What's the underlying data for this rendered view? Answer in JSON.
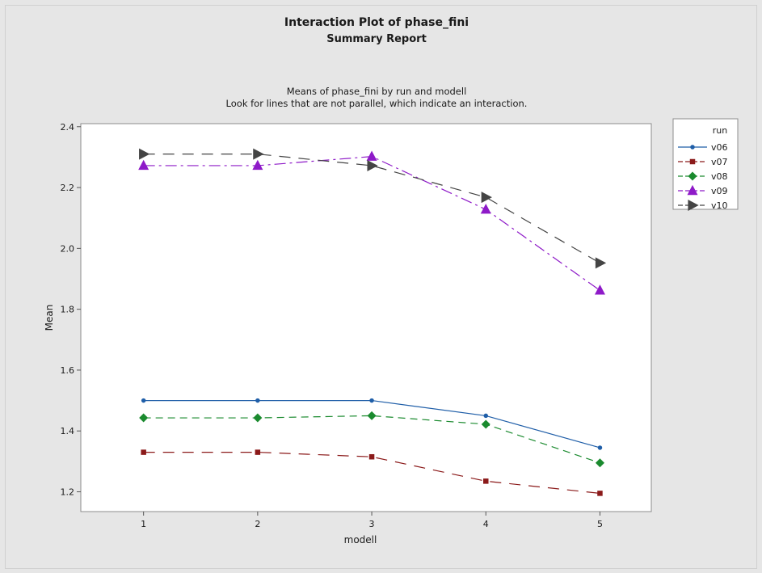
{
  "report": {
    "title": "Interaction Plot of phase_fini",
    "subtitle": "Summary Report",
    "chart_heading": "Means of phase_fini by run and modell",
    "chart_note": "Look for lines that are not parallel, which indicate an interaction."
  },
  "chart_data": {
    "type": "line",
    "xlabel": "modell",
    "ylabel": "Mean",
    "x": [
      1,
      2,
      3,
      4,
      5
    ],
    "xticks": [
      "1",
      "2",
      "3",
      "4",
      "5"
    ],
    "xlim": [
      0.45,
      5.45
    ],
    "ylim": [
      1.135,
      2.41
    ],
    "yticks": [
      "1.2",
      "1.4",
      "1.6",
      "1.8",
      "2.0",
      "2.2",
      "2.4"
    ],
    "ytick_values": [
      1.2,
      1.4,
      1.6,
      1.8,
      2.0,
      2.2,
      2.4
    ],
    "grid": false,
    "legend": {
      "title": "run",
      "placement": "right"
    },
    "series": [
      {
        "name": "v06",
        "values": [
          1.5,
          1.5,
          1.5,
          1.45,
          1.345
        ],
        "color": "#1f5ea8",
        "marker": "circle",
        "dash": "solid"
      },
      {
        "name": "v07",
        "values": [
          1.33,
          1.33,
          1.315,
          1.235,
          1.195
        ],
        "color": "#8b1a1a",
        "marker": "square",
        "dash": "long-dash"
      },
      {
        "name": "v08",
        "values": [
          1.443,
          1.443,
          1.45,
          1.422,
          1.295
        ],
        "color": "#1a8a2e",
        "marker": "diamond",
        "dash": "dash"
      },
      {
        "name": "v09",
        "values": [
          2.272,
          2.272,
          2.302,
          2.128,
          1.862
        ],
        "color": "#8e1ac8",
        "marker": "triangle-up",
        "dash": "dash-dot"
      },
      {
        "name": "v10",
        "values": [
          2.31,
          2.31,
          2.272,
          2.168,
          1.952
        ],
        "color": "#444444",
        "marker": "triangle-right",
        "dash": "long-dash"
      }
    ]
  }
}
